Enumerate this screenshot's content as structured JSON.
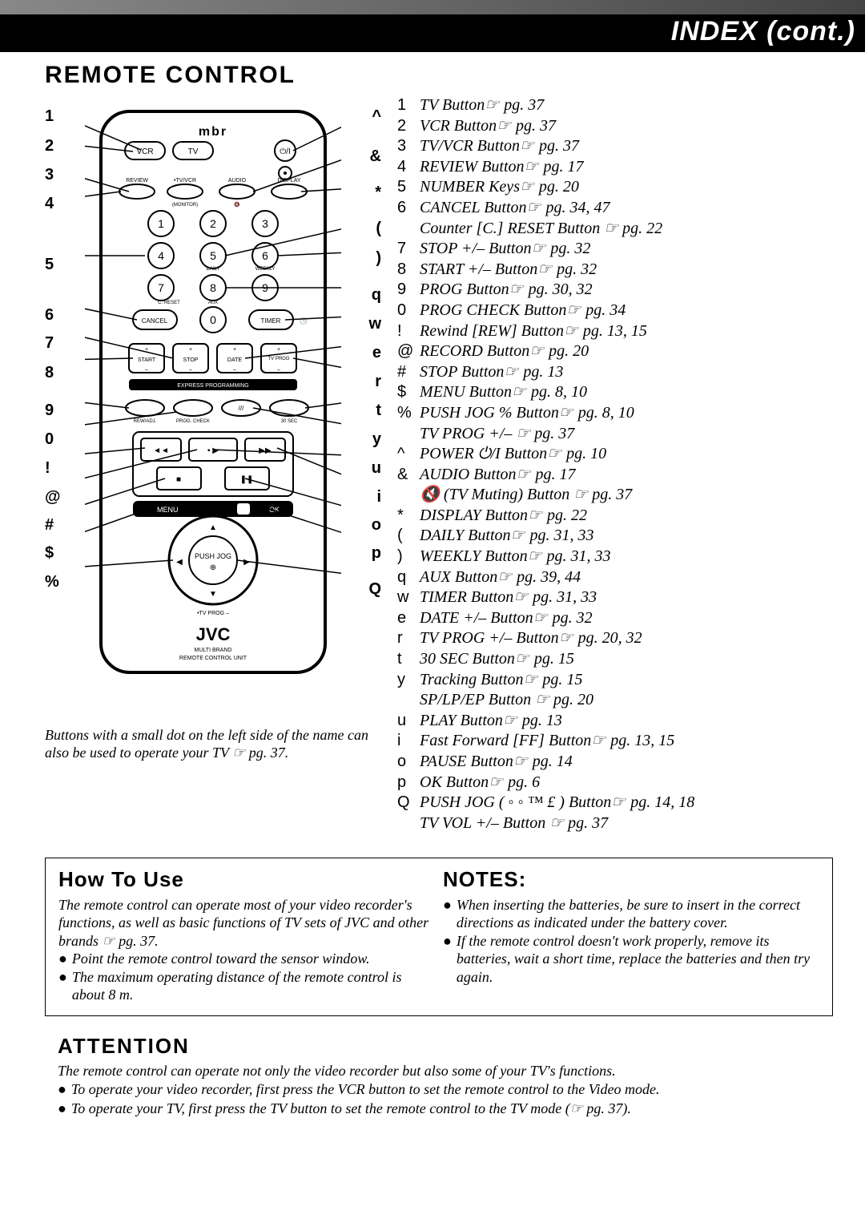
{
  "header": {
    "title": "INDEX (cont.)"
  },
  "section_title": "REMOTE CONTROL",
  "left_labels": [
    "1",
    "2",
    "3",
    "4",
    "5",
    "6",
    "7",
    "8",
    "9",
    "0",
    "!",
    "@",
    "#",
    "$",
    "%"
  ],
  "right_labels": [
    "^",
    "&",
    "*",
    "(",
    ")",
    "q",
    "w",
    "e",
    "r",
    "t",
    "y",
    "u",
    "i",
    "o",
    "p",
    "Q"
  ],
  "remote_text": {
    "brand_top": "mbr",
    "vcr": "VCR",
    "tv": "TV",
    "review": "REVIEW",
    "tvvcr": "•TV/VCR",
    "audio": "AUDIO",
    "display": "DISPLAY",
    "monitor": "(MONITOR)",
    "mute": "mute",
    "daily": "DAILY",
    "weekly": "WEEKLY",
    "creset": "C. RESET",
    "aux": "AUX",
    "cancel": "CANCEL",
    "timer": "TIMER",
    "start": "START",
    "stop_small": "STOP",
    "date": "DATE",
    "tvprog": "TV PROG",
    "express": "EXPRESS PROGRAMMING",
    "rew_adj": "REW/ADJ.",
    "progcheck": "PROG. CHECK",
    "ff30": "30 SEC",
    "menu": "MENU",
    "ok": "OK",
    "pushjog": "PUSH JOG",
    "tvprog_ring": "•TV PROG –",
    "brand": "JVC",
    "subbrand1": "MULTI BRAND",
    "subbrand2": "REMOTE CONTROL UNIT"
  },
  "refs": [
    {
      "k": "1",
      "label": "TV Button",
      "pg": "pg. 37"
    },
    {
      "k": "2",
      "label": "VCR Button",
      "pg": "pg. 37"
    },
    {
      "k": "3",
      "label": "TV/VCR Button",
      "pg": "pg. 37"
    },
    {
      "k": "4",
      "label": "REVIEW Button",
      "pg": "pg. 17"
    },
    {
      "k": "5",
      "label": "NUMBER Keys",
      "pg": "pg. 20"
    },
    {
      "k": "6",
      "label": "CANCEL Button",
      "pg": "pg. 34, 47",
      "sub": {
        "label": "Counter [C.] RESET Button",
        "pg": "pg. 22"
      }
    },
    {
      "k": "7",
      "label": "STOP +/– Button",
      "pg": "pg. 32"
    },
    {
      "k": "8",
      "label": "START +/– Button",
      "pg": "pg. 32"
    },
    {
      "k": "9",
      "label": "PROG Button",
      "pg": "pg. 30, 32"
    },
    {
      "k": "0",
      "label": "PROG CHECK Button",
      "pg": "pg. 34"
    },
    {
      "k": "!",
      "label": "Rewind [REW] Button",
      "pg": "pg. 13, 15"
    },
    {
      "k": "@",
      "label": "RECORD Button",
      "pg": "pg. 20"
    },
    {
      "k": "#",
      "label": "STOP Button",
      "pg": "pg. 13"
    },
    {
      "k": "$",
      "label": "MENU Button",
      "pg": "pg. 8, 10"
    },
    {
      "k": "%",
      "label": "PUSH JOG %  Button",
      "pg": "pg. 8, 10",
      "sub": {
        "label": "TV PROG +/–",
        "pg": "pg. 37"
      }
    },
    {
      "k": "^",
      "label": "POWER ⏻/I Button",
      "pg": "pg. 10"
    },
    {
      "k": "&",
      "label": "AUDIO Button",
      "pg": "pg. 17",
      "sub": {
        "label": "🔇 (TV Muting) Button",
        "pg": "pg. 37"
      }
    },
    {
      "k": "*",
      "label": "DISPLAY Button",
      "pg": "pg. 22"
    },
    {
      "k": "(",
      "label": "DAILY Button",
      "pg": "pg. 31, 33"
    },
    {
      "k": ")",
      "label": "WEEKLY Button",
      "pg": "pg. 31, 33"
    },
    {
      "k": "q",
      "label": "AUX Button",
      "pg": "pg. 39, 44"
    },
    {
      "k": "w",
      "label": "TIMER Button",
      "pg": "pg. 31, 33"
    },
    {
      "k": "e",
      "label": "DATE +/– Button",
      "pg": "pg. 32"
    },
    {
      "k": "r",
      "label": "TV PROG +/– Button",
      "pg": "pg. 20, 32"
    },
    {
      "k": "t",
      "label": "30 SEC Button",
      "pg": "pg. 15"
    },
    {
      "k": "y",
      "label": "Tracking Button",
      "pg": "pg. 15",
      "sub": {
        "label": "SP/LP/EP Button",
        "pg": "pg. 20"
      }
    },
    {
      "k": "u",
      "label": "PLAY Button",
      "pg": "pg. 13"
    },
    {
      "k": "i",
      "label": "Fast Forward [FF] Button",
      "pg": "pg. 13, 15"
    },
    {
      "k": "o",
      "label": "PAUSE Button",
      "pg": "pg. 14"
    },
    {
      "k": "p",
      "label": "OK Button",
      "pg": "pg. 6"
    },
    {
      "k": "Q",
      "label": "PUSH JOG ( ◦ ◦ ™ £       ) Button",
      "pg": "pg. 14, 18",
      "sub": {
        "label": "TV VOL +/– Button",
        "pg": "pg. 37"
      }
    }
  ],
  "footnote": "Buttons with a small dot on the left side of the name can also be used to operate your TV ☞ pg. 37.",
  "howto": {
    "title": "How To Use",
    "intro": "The remote control can operate most of your video recorder's functions, as well as basic functions of TV sets of JVC and other brands ☞ pg. 37.",
    "b1": "Point the remote control toward the sensor window.",
    "b2": "The maximum operating distance of the remote control is about 8 m."
  },
  "notes": {
    "title": "NOTES:",
    "b1": "When inserting the batteries, be sure to insert in the correct directions as indicated under the battery cover.",
    "b2": "If the remote control doesn't work properly, remove its batteries, wait a short time, replace the batteries and then try again."
  },
  "attention": {
    "title": "ATTENTION",
    "intro": "The remote control can operate not only the video recorder but also some of your TV's functions.",
    "b1": "To operate your video recorder, first press the VCR button to set the remote control to the Video mode.",
    "b2": "To operate your TV, first press the TV button to set the remote control to the TV mode (☞ pg. 37)."
  },
  "colors": {
    "black": "#000000",
    "grey_grad_start": "#888888",
    "grey_grad_end": "#444444"
  }
}
